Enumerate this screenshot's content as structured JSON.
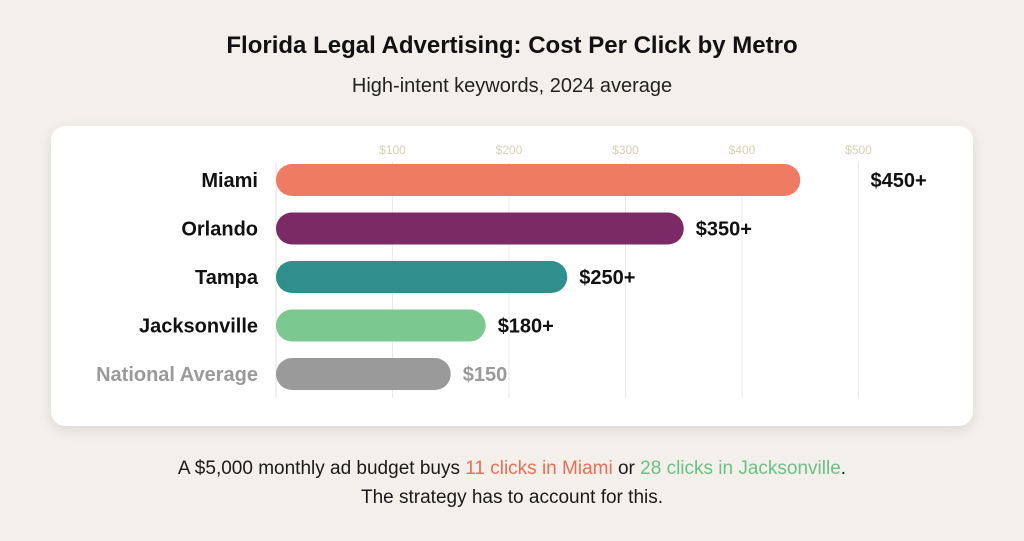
{
  "chart_data": {
    "type": "bar",
    "orientation": "horizontal",
    "title": "Florida Legal Advertising: Cost Per Click by Metro",
    "subtitle": "High-intent keywords, 2024 average",
    "categories": [
      "Miami",
      "Orlando",
      "Tampa",
      "Jacksonville",
      "National Average"
    ],
    "values": [
      450,
      350,
      250,
      180,
      150
    ],
    "value_labels": [
      "$450+",
      "$350+",
      "$250+",
      "$180+",
      "$150"
    ],
    "colors": [
      "#ef7b62",
      "#7b2a66",
      "#2e8f8c",
      "#7cc891",
      "#9a9a9a"
    ],
    "muted_category": "National Average",
    "xticks": [
      100,
      200,
      300,
      400,
      500
    ],
    "xtick_labels": [
      "$100",
      "$200",
      "$300",
      "$400",
      "$500"
    ],
    "xlim": [
      0,
      500
    ],
    "grid": true,
    "xlabel": "",
    "ylabel": ""
  },
  "footer": {
    "line1_prefix": "A $5,000 monthly ad budget buys ",
    "line1_highlight1": "11 clicks in Miami",
    "line1_mid": " or ",
    "line1_highlight2": "28 clicks in Jacksonville",
    "line1_suffix": ".",
    "line2": "The strategy has to account for this."
  }
}
